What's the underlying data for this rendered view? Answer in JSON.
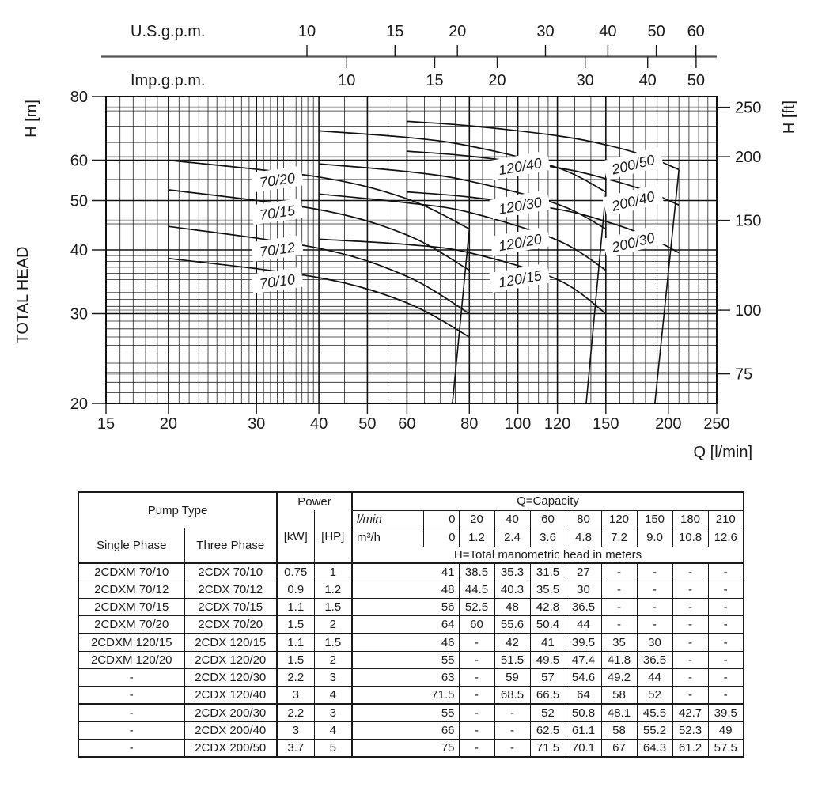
{
  "page": {
    "background": "#ffffff",
    "ink": "#1a1a1a"
  },
  "chart_data": {
    "type": "line",
    "title": "Pump performance curves: total head H vs capacity Q (log-log)",
    "x_axis": {
      "label": "Q [l/min]",
      "scale": "log",
      "min": 15,
      "max": 250,
      "major_ticks": [
        15,
        20,
        30,
        40,
        50,
        60,
        80,
        100,
        120,
        150,
        200,
        250
      ],
      "minor_ticks": [
        16,
        17,
        18,
        19,
        21,
        22,
        23,
        24,
        25,
        26,
        27,
        28,
        29,
        31,
        32,
        33,
        34,
        35,
        36,
        37,
        38,
        39,
        45,
        55,
        65,
        70,
        75,
        85,
        90,
        95,
        105,
        110,
        115,
        130,
        140,
        160,
        170,
        180,
        190,
        210,
        220,
        230,
        240
      ]
    },
    "y_axis": {
      "unit_label": "H [m]",
      "title": "TOTAL HEAD",
      "scale": "log",
      "min": 20,
      "max": 80,
      "major_ticks": [
        80,
        60,
        50,
        40,
        30,
        20
      ],
      "minor_ticks": [
        21,
        22,
        23,
        24,
        25,
        26,
        27,
        28,
        29,
        31,
        32,
        33,
        34,
        35,
        36,
        37,
        38,
        39,
        45,
        55,
        65,
        70,
        75
      ]
    },
    "y_axis_right": {
      "label": "H [ft]",
      "ticks": [
        250,
        200,
        150,
        100,
        75
      ],
      "m_per_ft": 0.3048
    },
    "top_axis": {
      "us": {
        "label": "U.S.g.p.m.",
        "ticks": [
          10,
          15,
          20,
          30,
          40,
          50,
          60
        ],
        "l_min_per_unit": 3.78541
      },
      "imp": {
        "label": "Imp.g.p.m.",
        "ticks": [
          10,
          15,
          20,
          30,
          40,
          50
        ],
        "l_min_per_unit": 4.54609
      }
    },
    "series": [
      {
        "name": "70/10",
        "points": [
          [
            20,
            38.5
          ],
          [
            40,
            35.3
          ],
          [
            60,
            31.5
          ],
          [
            80,
            27
          ]
        ]
      },
      {
        "name": "70/12",
        "points": [
          [
            20,
            44.5
          ],
          [
            40,
            40.3
          ],
          [
            60,
            35.5
          ],
          [
            80,
            30
          ]
        ]
      },
      {
        "name": "70/15",
        "points": [
          [
            20,
            52.5
          ],
          [
            40,
            48
          ],
          [
            60,
            42.8
          ],
          [
            80,
            36.5
          ]
        ]
      },
      {
        "name": "70/20",
        "points": [
          [
            20,
            60
          ],
          [
            40,
            55.6
          ],
          [
            60,
            50.4
          ],
          [
            80,
            44
          ]
        ]
      },
      {
        "name": "120/15",
        "points": [
          [
            40,
            42
          ],
          [
            60,
            41
          ],
          [
            80,
            39.5
          ],
          [
            120,
            35
          ],
          [
            150,
            30
          ]
        ]
      },
      {
        "name": "120/20",
        "points": [
          [
            40,
            51.5
          ],
          [
            60,
            49.5
          ],
          [
            80,
            47.4
          ],
          [
            120,
            41.8
          ],
          [
            150,
            36.5
          ]
        ]
      },
      {
        "name": "120/30",
        "points": [
          [
            40,
            59
          ],
          [
            60,
            57
          ],
          [
            80,
            54.6
          ],
          [
            120,
            49.2
          ],
          [
            150,
            44
          ]
        ]
      },
      {
        "name": "120/40",
        "points": [
          [
            40,
            68.5
          ],
          [
            60,
            66.5
          ],
          [
            80,
            64
          ],
          [
            120,
            58
          ],
          [
            150,
            52
          ]
        ]
      },
      {
        "name": "200/30",
        "points": [
          [
            60,
            52
          ],
          [
            80,
            50.8
          ],
          [
            120,
            48.1
          ],
          [
            150,
            45.5
          ],
          [
            180,
            42.7
          ],
          [
            210,
            39.5
          ]
        ]
      },
      {
        "name": "200/40",
        "points": [
          [
            60,
            62.5
          ],
          [
            80,
            61.1
          ],
          [
            120,
            58
          ],
          [
            150,
            55.2
          ],
          [
            180,
            52.3
          ],
          [
            210,
            49
          ]
        ]
      },
      {
        "name": "200/50",
        "points": [
          [
            60,
            71.5
          ],
          [
            80,
            70.1
          ],
          [
            120,
            67
          ],
          [
            150,
            64.3
          ],
          [
            180,
            61.2
          ],
          [
            210,
            57.5
          ]
        ]
      }
    ],
    "curve_labels": [
      {
        "text": "70/20",
        "q": 33,
        "h": 55,
        "angle": -8
      },
      {
        "text": "70/15",
        "q": 33,
        "h": 47.5,
        "angle": -8
      },
      {
        "text": "70/12",
        "q": 33,
        "h": 40.2,
        "angle": -8
      },
      {
        "text": "70/10",
        "q": 33,
        "h": 34.8,
        "angle": -8
      },
      {
        "text": "120/40",
        "q": 101,
        "h": 58.5,
        "angle": -10
      },
      {
        "text": "120/30",
        "q": 101,
        "h": 49,
        "angle": -10
      },
      {
        "text": "120/20",
        "q": 101,
        "h": 41.5,
        "angle": -10
      },
      {
        "text": "120/15",
        "q": 101,
        "h": 35.2,
        "angle": -10
      },
      {
        "text": "200/50",
        "q": 170,
        "h": 59,
        "angle": -14
      },
      {
        "text": "200/40",
        "q": 170,
        "h": 50,
        "angle": -14
      },
      {
        "text": "200/30",
        "q": 170,
        "h": 41.5,
        "angle": -14
      }
    ],
    "operating_limit_lines": [
      {
        "family": "70",
        "from": [
          80,
          44
        ],
        "to": [
          74,
          20
        ]
      },
      {
        "family": "120",
        "from": [
          150,
          52
        ],
        "to": [
          137,
          20
        ]
      },
      {
        "family": "200",
        "from": [
          210,
          57.5
        ],
        "to": [
          188,
          20
        ]
      }
    ],
    "colors": {
      "ink": "#1a1a1a",
      "curve": "#111111",
      "grid": "#222222",
      "ft_gridline": "#b5b5b5"
    }
  },
  "table": {
    "header": {
      "pump_type": "Pump Type",
      "single_phase": "Single Phase",
      "three_phase": "Three Phase",
      "power": "Power",
      "kw": "[kW]",
      "hp": "[HP]",
      "q_capacity": "Q=Capacity",
      "flow_unit_lmin": "l/min",
      "flow_unit_m3h": "m³/h",
      "lmin_values": [
        "0",
        "20",
        "40",
        "60",
        "80",
        "120",
        "150",
        "180",
        "210"
      ],
      "m3h_values": [
        "0",
        "1.2",
        "2.4",
        "3.6",
        "4.8",
        "7.2",
        "9.0",
        "10.8",
        "12.6"
      ],
      "h_note": "H=Total manometric head in meters"
    },
    "rows": [
      {
        "single": "2CDXM 70/10",
        "three": "2CDX 70/10",
        "kw": "0.75",
        "hp": "1",
        "h": [
          "41",
          "38.5",
          "35.3",
          "31.5",
          "27",
          "-",
          "-",
          "-",
          "-"
        ]
      },
      {
        "single": "2CDXM 70/12",
        "three": "2CDX 70/12",
        "kw": "0.9",
        "hp": "1.2",
        "h": [
          "48",
          "44.5",
          "40.3",
          "35.5",
          "30",
          "-",
          "-",
          "-",
          "-"
        ]
      },
      {
        "single": "2CDXM 70/15",
        "three": "2CDX 70/15",
        "kw": "1.1",
        "hp": "1.5",
        "h": [
          "56",
          "52.5",
          "48",
          "42.8",
          "36.5",
          "-",
          "-",
          "-",
          "-"
        ]
      },
      {
        "single": "2CDXM 70/20",
        "three": "2CDX 70/20",
        "kw": "1.5",
        "hp": "2",
        "h": [
          "64",
          "60",
          "55.6",
          "50.4",
          "44",
          "-",
          "-",
          "-",
          "-"
        ]
      },
      {
        "single": "2CDXM 120/15",
        "three": "2CDX 120/15",
        "kw": "1.1",
        "hp": "1.5",
        "h": [
          "46",
          "-",
          "42",
          "41",
          "39.5",
          "35",
          "30",
          "-",
          "-"
        ],
        "group_start": true
      },
      {
        "single": "2CDXM 120/20",
        "three": "2CDX 120/20",
        "kw": "1.5",
        "hp": "2",
        "h": [
          "55",
          "-",
          "51.5",
          "49.5",
          "47.4",
          "41.8",
          "36.5",
          "-",
          "-"
        ]
      },
      {
        "single": "-",
        "three": "2CDX 120/30",
        "kw": "2.2",
        "hp": "3",
        "h": [
          "63",
          "-",
          "59",
          "57",
          "54.6",
          "49.2",
          "44",
          "-",
          "-"
        ]
      },
      {
        "single": "-",
        "three": "2CDX 120/40",
        "kw": "3",
        "hp": "4",
        "h": [
          "71.5",
          "-",
          "68.5",
          "66.5",
          "64",
          "58",
          "52",
          "-",
          "-"
        ]
      },
      {
        "single": "-",
        "three": "2CDX 200/30",
        "kw": "2.2",
        "hp": "3",
        "h": [
          "55",
          "-",
          "-",
          "52",
          "50.8",
          "48.1",
          "45.5",
          "42.7",
          "39.5"
        ],
        "group_start": true
      },
      {
        "single": "-",
        "three": "2CDX 200/40",
        "kw": "3",
        "hp": "4",
        "h": [
          "66",
          "-",
          "-",
          "62.5",
          "61.1",
          "58",
          "55.2",
          "52.3",
          "49"
        ]
      },
      {
        "single": "-",
        "three": "2CDX 200/50",
        "kw": "3.7",
        "hp": "5",
        "h": [
          "75",
          "-",
          "-",
          "71.5",
          "70.1",
          "67",
          "64.3",
          "61.2",
          "57.5"
        ]
      }
    ]
  }
}
